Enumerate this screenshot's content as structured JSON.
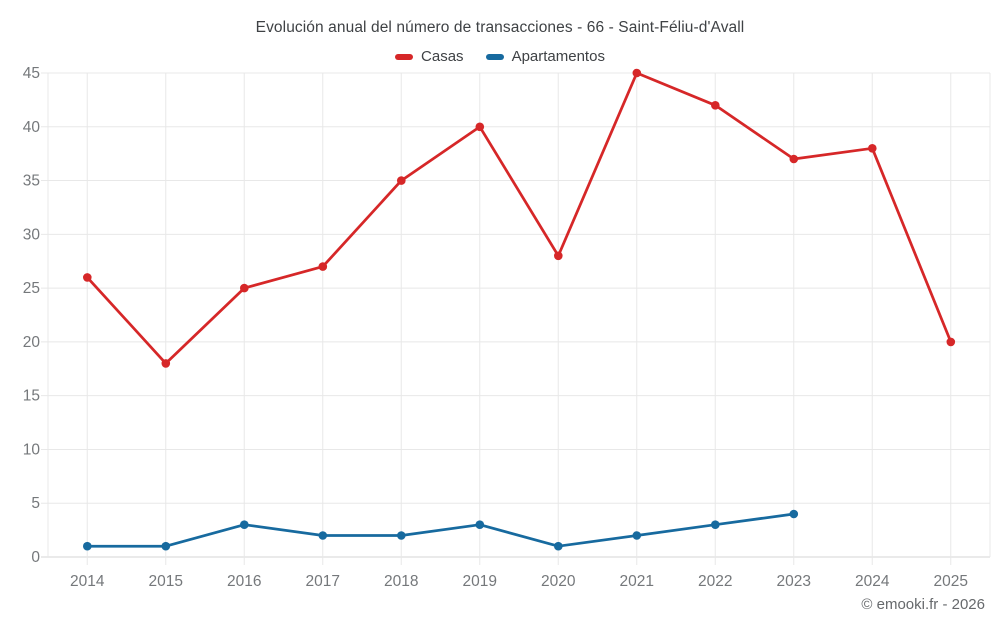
{
  "chart_data": {
    "type": "line",
    "title": "Evolución anual del número de transacciones - 66 - Saint-Féliu-d'Avall",
    "categories": [
      "2014",
      "2015",
      "2016",
      "2017",
      "2018",
      "2019",
      "2020",
      "2021",
      "2022",
      "2023",
      "2024",
      "2025"
    ],
    "series": [
      {
        "name": "Casas",
        "color": "#d62728",
        "values": [
          26,
          18,
          25,
          27,
          35,
          40,
          28,
          45,
          42,
          37,
          38,
          20
        ]
      },
      {
        "name": "Apartamentos",
        "color": "#176a9f",
        "values": [
          1,
          1,
          3,
          2,
          2,
          3,
          1,
          2,
          3,
          4,
          null,
          null
        ]
      }
    ],
    "xlabel": "",
    "ylabel": "",
    "ylim": [
      0,
      45
    ],
    "yticks": [
      0,
      5,
      10,
      15,
      20,
      25,
      30,
      35,
      40,
      45
    ],
    "grid": true,
    "legend_position": "top-center"
  },
  "footer": {
    "credit": "© emooki.fr - 2026"
  },
  "colors": {
    "grid": "#e8e8e8",
    "axis_line": "#d6d6d6",
    "tick_label": "#75787b",
    "title_text": "#3f4245",
    "footer_text": "#66696c",
    "background": "#ffffff"
  }
}
